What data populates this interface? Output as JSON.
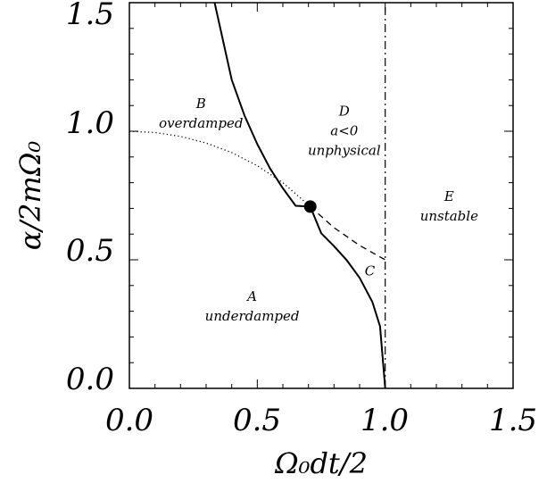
{
  "chart_data": {
    "type": "line",
    "xlabel": "Ω₀dt/2",
    "ylabel": "α/2mΩ₀",
    "xlim": [
      0.0,
      1.5
    ],
    "ylim": [
      0.0,
      1.5
    ],
    "x_ticks": [
      "0.0",
      "0.5",
      "1.0",
      "1.5"
    ],
    "y_ticks": [
      "0.0",
      "0.5",
      "1.0",
      "1.5"
    ],
    "grid": false,
    "series": [
      {
        "style": "solid",
        "x": [
          0.333,
          0.4,
          0.45,
          0.5,
          0.55,
          0.6,
          0.65,
          0.7071,
          0.75,
          0.8,
          0.85,
          0.9,
          0.95,
          0.98,
          1.0
        ],
        "y": [
          1.5,
          1.2,
          1.061,
          0.95,
          0.855,
          0.778,
          0.71,
          0.707,
          0.603,
          0.553,
          0.498,
          0.43,
          0.336,
          0.241,
          0.0
        ]
      },
      {
        "style": "dotted",
        "x": [
          0.0,
          0.1,
          0.2,
          0.3,
          0.4,
          0.5,
          0.6,
          0.7071
        ],
        "y": [
          1.0,
          0.995,
          0.98,
          0.954,
          0.917,
          0.866,
          0.8,
          0.707
        ]
      },
      {
        "style": "dashed",
        "x": [
          0.7071,
          0.8,
          0.9,
          1.0
        ],
        "y": [
          0.707,
          0.625,
          0.556,
          0.5
        ]
      },
      {
        "style": "dash-dot",
        "x": [
          1.0,
          1.0
        ],
        "y": [
          0.0,
          1.5
        ]
      }
    ],
    "points": [
      {
        "x": 0.7071,
        "y": 0.707
      }
    ],
    "regions": [
      {
        "letter": "A",
        "label": "underdamped",
        "x": 0.48,
        "y": 0.34
      },
      {
        "letter": "B",
        "label": "overdamped",
        "x": 0.28,
        "y": 1.09
      },
      {
        "letter": "C",
        "label": "",
        "x": 0.94,
        "y": 0.44
      },
      {
        "letter": "D",
        "label": "a<0",
        "label2": "unphysical",
        "x": 0.84,
        "y": 1.06
      },
      {
        "letter": "E",
        "label": "unstable",
        "x": 1.25,
        "y": 0.73
      }
    ]
  }
}
